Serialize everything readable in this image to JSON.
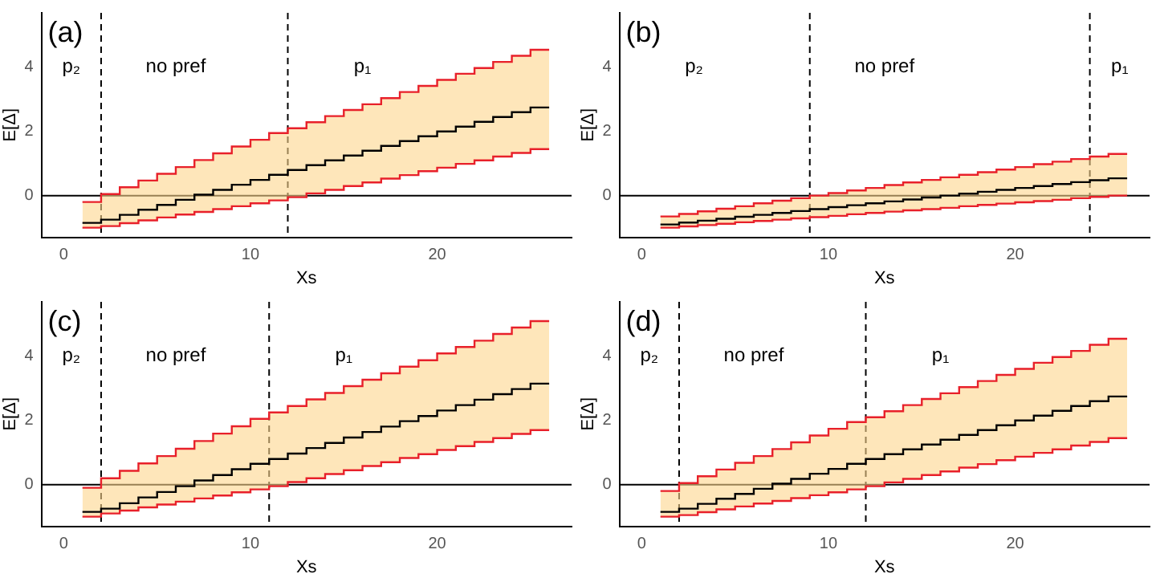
{
  "chart_data": [
    {
      "type": "step",
      "title": "(a)",
      "xlabel": "Xs",
      "ylabel": "E[Δ]",
      "xlim": [
        -1.2,
        27.2
      ],
      "ylim": [
        -1.3,
        5.7
      ],
      "xticks": [
        0,
        10,
        20
      ],
      "yticks": [
        0,
        2,
        4
      ],
      "grid": false,
      "legend": false,
      "x": [
        1,
        2,
        3,
        4,
        5,
        6,
        7,
        8,
        9,
        10,
        11,
        12,
        13,
        14,
        15,
        16,
        17,
        18,
        19,
        20,
        21,
        22,
        23,
        24,
        25,
        26
      ],
      "series": [
        {
          "color": "#e8202a",
          "values": [
            -0.2,
            0.05,
            0.26,
            0.47,
            0.68,
            0.89,
            1.11,
            1.32,
            1.53,
            1.74,
            1.95,
            2.1,
            2.29,
            2.48,
            2.67,
            2.85,
            3.04,
            3.23,
            3.42,
            3.61,
            3.8,
            3.98,
            4.17,
            4.36,
            4.55,
            4.55
          ]
        },
        {
          "color": "#000000",
          "values": [
            -0.85,
            -0.75,
            -0.6,
            -0.44,
            -0.29,
            -0.13,
            0.03,
            0.18,
            0.34,
            0.49,
            0.65,
            0.8,
            0.95,
            1.1,
            1.25,
            1.4,
            1.55,
            1.7,
            1.85,
            2.0,
            2.15,
            2.3,
            2.45,
            2.6,
            2.75,
            2.75
          ],
          "upper": [
            -0.2,
            0.05,
            0.26,
            0.47,
            0.68,
            0.89,
            1.11,
            1.32,
            1.53,
            1.74,
            1.95,
            2.1,
            2.29,
            2.48,
            2.67,
            2.85,
            3.04,
            3.23,
            3.42,
            3.61,
            3.8,
            3.98,
            4.17,
            4.36,
            4.55,
            4.55
          ],
          "lower": [
            -1.0,
            -0.95,
            -0.86,
            -0.77,
            -0.68,
            -0.59,
            -0.51,
            -0.42,
            -0.33,
            -0.24,
            -0.15,
            -0.05,
            0.07,
            0.18,
            0.3,
            0.41,
            0.53,
            0.64,
            0.76,
            0.87,
            0.99,
            1.1,
            1.22,
            1.33,
            1.45,
            1.45
          ]
        },
        {
          "color": "#e8202a",
          "values": [
            -1.0,
            -0.95,
            -0.86,
            -0.77,
            -0.68,
            -0.59,
            -0.51,
            -0.42,
            -0.33,
            -0.24,
            -0.15,
            -0.05,
            0.07,
            0.18,
            0.3,
            0.41,
            0.53,
            0.64,
            0.76,
            0.87,
            0.99,
            1.1,
            1.22,
            1.33,
            1.45,
            1.45
          ]
        }
      ],
      "ref_lines": [
        {
          "axis": "y",
          "value": 0,
          "line_style": "solid"
        },
        {
          "axis": "x",
          "value": 2,
          "line_style": "dashed"
        },
        {
          "axis": "x",
          "value": 12,
          "line_style": "dashed"
        }
      ],
      "annotations": [
        "p₂",
        "no pref",
        "p₁"
      ]
    },
    {
      "type": "step",
      "title": "(b)",
      "xlabel": "Xs",
      "ylabel": "E[Δ]",
      "xlim": [
        -1.2,
        27.2
      ],
      "ylim": [
        -1.3,
        5.7
      ],
      "xticks": [
        0,
        10,
        20
      ],
      "yticks": [
        0,
        2,
        4
      ],
      "grid": false,
      "legend": false,
      "x": [
        1,
        2,
        3,
        4,
        5,
        6,
        7,
        8,
        9,
        10,
        11,
        12,
        13,
        14,
        15,
        16,
        17,
        18,
        19,
        20,
        21,
        22,
        23,
        24,
        25,
        26
      ],
      "series": [
        {
          "color": "#e8202a",
          "values": [
            -0.65,
            -0.57,
            -0.49,
            -0.41,
            -0.33,
            -0.24,
            -0.16,
            -0.08,
            0.0,
            0.08,
            0.16,
            0.24,
            0.33,
            0.41,
            0.49,
            0.57,
            0.65,
            0.73,
            0.81,
            0.89,
            0.98,
            1.06,
            1.14,
            1.22,
            1.3,
            1.3
          ]
        },
        {
          "color": "#000000",
          "values": [
            -0.9,
            -0.84,
            -0.78,
            -0.72,
            -0.66,
            -0.6,
            -0.54,
            -0.48,
            -0.42,
            -0.36,
            -0.3,
            -0.24,
            -0.18,
            -0.12,
            -0.06,
            0,
            0.06,
            0.12,
            0.18,
            0.24,
            0.3,
            0.36,
            0.42,
            0.48,
            0.54,
            0.54
          ],
          "upper": [
            -0.65,
            -0.57,
            -0.49,
            -0.41,
            -0.33,
            -0.24,
            -0.16,
            -0.08,
            0.0,
            0.08,
            0.16,
            0.24,
            0.33,
            0.41,
            0.49,
            0.57,
            0.65,
            0.73,
            0.81,
            0.89,
            0.98,
            1.06,
            1.14,
            1.22,
            1.3,
            1.3
          ],
          "lower": [
            -1.0,
            -0.96,
            -0.92,
            -0.88,
            -0.83,
            -0.79,
            -0.75,
            -0.71,
            -0.67,
            -0.63,
            -0.58,
            -0.54,
            -0.5,
            -0.46,
            -0.42,
            -0.38,
            -0.33,
            -0.29,
            -0.25,
            -0.21,
            -0.17,
            -0.13,
            -0.08,
            -0.04,
            0.0,
            0.0
          ]
        },
        {
          "color": "#e8202a",
          "values": [
            -1.0,
            -0.96,
            -0.92,
            -0.88,
            -0.83,
            -0.79,
            -0.75,
            -0.71,
            -0.67,
            -0.63,
            -0.58,
            -0.54,
            -0.5,
            -0.46,
            -0.42,
            -0.38,
            -0.33,
            -0.29,
            -0.25,
            -0.21,
            -0.17,
            -0.13,
            -0.08,
            -0.04,
            0.0,
            0.0
          ]
        }
      ],
      "ref_lines": [
        {
          "axis": "y",
          "value": 0,
          "line_style": "solid"
        },
        {
          "axis": "x",
          "value": 9,
          "line_style": "dashed"
        },
        {
          "axis": "x",
          "value": 24,
          "line_style": "dashed"
        }
      ],
      "annotations": [
        "p₂",
        "no pref",
        "p₁"
      ]
    },
    {
      "type": "step",
      "title": "(c)",
      "xlabel": "Xs",
      "ylabel": "E[Δ]",
      "xlim": [
        -1.2,
        27.2
      ],
      "ylim": [
        -1.3,
        5.7
      ],
      "xticks": [
        0,
        10,
        20
      ],
      "yticks": [
        0,
        2,
        4
      ],
      "grid": false,
      "legend": false,
      "x": [
        1,
        2,
        3,
        4,
        5,
        6,
        7,
        8,
        9,
        10,
        11,
        12,
        13,
        14,
        15,
        16,
        17,
        18,
        19,
        20,
        21,
        22,
        23,
        24,
        25,
        26
      ],
      "series": [
        {
          "color": "#e8202a",
          "values": [
            -0.1,
            0.2,
            0.43,
            0.66,
            0.89,
            1.12,
            1.36,
            1.59,
            1.82,
            2.05,
            2.25,
            2.45,
            2.66,
            2.86,
            3.07,
            3.27,
            3.47,
            3.68,
            3.88,
            4.09,
            4.29,
            4.49,
            4.7,
            4.9,
            5.1,
            5.1
          ]
        },
        {
          "color": "#000000",
          "values": [
            -0.85,
            -0.75,
            -0.58,
            -0.4,
            -0.23,
            -0.05,
            0.13,
            0.3,
            0.48,
            0.65,
            0.8,
            0.97,
            1.14,
            1.3,
            1.47,
            1.64,
            1.81,
            1.98,
            2.14,
            2.31,
            2.48,
            2.65,
            2.82,
            2.98,
            3.15,
            3.15
          ],
          "upper": [
            -0.1,
            0.2,
            0.43,
            0.66,
            0.89,
            1.12,
            1.36,
            1.59,
            1.82,
            2.05,
            2.25,
            2.45,
            2.66,
            2.86,
            3.07,
            3.27,
            3.47,
            3.68,
            3.88,
            4.09,
            4.29,
            4.49,
            4.7,
            4.9,
            5.1,
            5.1
          ],
          "lower": [
            -1.0,
            -0.9,
            -0.81,
            -0.71,
            -0.62,
            -0.53,
            -0.43,
            -0.34,
            -0.24,
            -0.15,
            -0.05,
            0.08,
            0.2,
            0.33,
            0.45,
            0.58,
            0.7,
            0.83,
            0.95,
            1.08,
            1.2,
            1.33,
            1.45,
            1.58,
            1.7,
            1.7
          ]
        },
        {
          "color": "#e8202a",
          "values": [
            -1.0,
            -0.9,
            -0.81,
            -0.71,
            -0.62,
            -0.53,
            -0.43,
            -0.34,
            -0.24,
            -0.15,
            -0.05,
            0.08,
            0.2,
            0.33,
            0.45,
            0.58,
            0.7,
            0.83,
            0.95,
            1.08,
            1.2,
            1.33,
            1.45,
            1.58,
            1.7,
            1.7
          ]
        }
      ],
      "ref_lines": [
        {
          "axis": "y",
          "value": 0,
          "line_style": "solid"
        },
        {
          "axis": "x",
          "value": 2,
          "line_style": "dashed"
        },
        {
          "axis": "x",
          "value": 11,
          "line_style": "dashed"
        }
      ],
      "annotations": [
        "p₂",
        "no pref",
        "p₁"
      ]
    },
    {
      "type": "step",
      "title": "(d)",
      "xlabel": "Xs",
      "ylabel": "E[Δ]",
      "xlim": [
        -1.2,
        27.2
      ],
      "ylim": [
        -1.3,
        5.7
      ],
      "xticks": [
        0,
        10,
        20
      ],
      "yticks": [
        0,
        2,
        4
      ],
      "grid": false,
      "legend": false,
      "x": [
        1,
        2,
        3,
        4,
        5,
        6,
        7,
        8,
        9,
        10,
        11,
        12,
        13,
        14,
        15,
        16,
        17,
        18,
        19,
        20,
        21,
        22,
        23,
        24,
        25,
        26
      ],
      "series": [
        {
          "color": "#e8202a",
          "values": [
            -0.2,
            0.05,
            0.26,
            0.47,
            0.68,
            0.89,
            1.11,
            1.32,
            1.53,
            1.74,
            1.95,
            2.1,
            2.29,
            2.48,
            2.67,
            2.85,
            3.04,
            3.23,
            3.42,
            3.61,
            3.8,
            3.98,
            4.17,
            4.36,
            4.55,
            4.55
          ]
        },
        {
          "color": "#000000",
          "values": [
            -0.85,
            -0.75,
            -0.6,
            -0.44,
            -0.29,
            -0.13,
            0.03,
            0.18,
            0.34,
            0.49,
            0.65,
            0.8,
            0.95,
            1.1,
            1.25,
            1.4,
            1.55,
            1.7,
            1.85,
            2.0,
            2.15,
            2.3,
            2.45,
            2.6,
            2.75,
            2.75
          ],
          "upper": [
            -0.2,
            0.05,
            0.26,
            0.47,
            0.68,
            0.89,
            1.11,
            1.32,
            1.53,
            1.74,
            1.95,
            2.1,
            2.29,
            2.48,
            2.67,
            2.85,
            3.04,
            3.23,
            3.42,
            3.61,
            3.8,
            3.98,
            4.17,
            4.36,
            4.55,
            4.55
          ],
          "lower": [
            -1.0,
            -0.95,
            -0.86,
            -0.77,
            -0.68,
            -0.59,
            -0.51,
            -0.42,
            -0.33,
            -0.24,
            -0.15,
            -0.05,
            0.07,
            0.18,
            0.3,
            0.41,
            0.53,
            0.64,
            0.76,
            0.87,
            0.99,
            1.1,
            1.22,
            1.33,
            1.45,
            1.45
          ]
        },
        {
          "color": "#e8202a",
          "values": [
            -1.0,
            -0.95,
            -0.86,
            -0.77,
            -0.68,
            -0.59,
            -0.51,
            -0.42,
            -0.33,
            -0.24,
            -0.15,
            -0.05,
            0.07,
            0.18,
            0.3,
            0.41,
            0.53,
            0.64,
            0.76,
            0.87,
            0.99,
            1.1,
            1.22,
            1.33,
            1.45,
            1.45
          ]
        }
      ],
      "ref_lines": [
        {
          "axis": "y",
          "value": 0,
          "line_style": "solid"
        },
        {
          "axis": "x",
          "value": 2,
          "line_style": "dashed"
        },
        {
          "axis": "x",
          "value": 12,
          "line_style": "dashed"
        }
      ],
      "annotations": [
        "p₂",
        "no pref",
        "p₁"
      ]
    }
  ]
}
